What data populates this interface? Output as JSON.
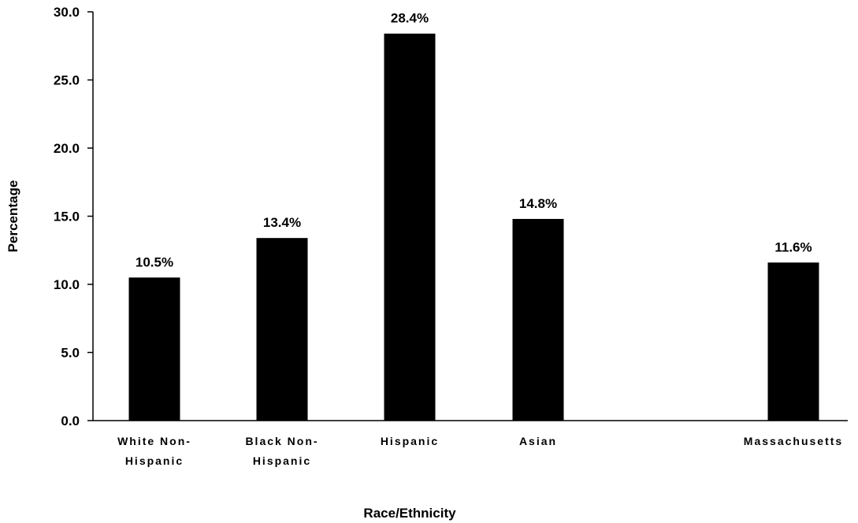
{
  "chart_data": {
    "type": "bar",
    "xlabel": "Race/Ethnicity",
    "ylabel": "Percentage",
    "ylim": [
      0,
      30
    ],
    "yticks": [
      "0.0",
      "5.0",
      "10.0",
      "15.0",
      "20.0",
      "25.0",
      "30.0"
    ],
    "grid": false,
    "legend": "none",
    "bar_color": "#000000",
    "categories": [
      [
        "White Non-",
        "Hispanic"
      ],
      [
        "Black Non-",
        "Hispanic"
      ],
      [
        "Hispanic"
      ],
      [
        "Asian"
      ],
      [
        "Massachusetts"
      ]
    ],
    "values": [
      10.5,
      13.4,
      28.4,
      14.8,
      11.6
    ],
    "data_labels": [
      "10.5%",
      "13.4%",
      "28.4%",
      "14.8%",
      "11.6%"
    ]
  }
}
